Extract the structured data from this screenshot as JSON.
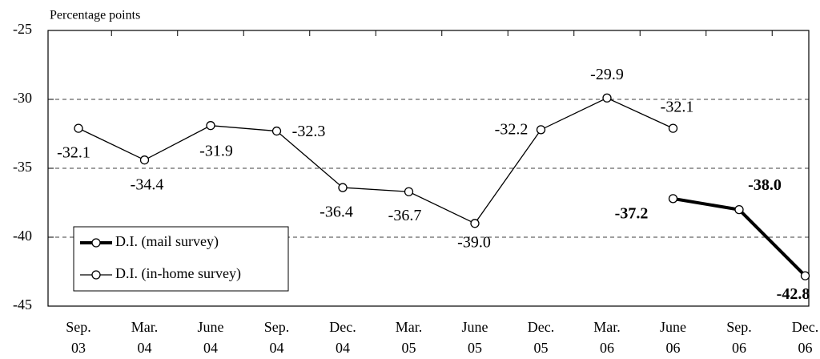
{
  "chart_data": {
    "type": "line",
    "y_label": "Percentage points",
    "categories": [
      "Sep.\n03",
      "Mar.\n04",
      "June\n04",
      "Sep.\n04",
      "Dec.\n04",
      "Mar.\n05",
      "June\n05",
      "Dec.\n05",
      "Mar.\n06",
      "June\n06",
      "Sep.\n06",
      "Dec.\n06"
    ],
    "series": [
      {
        "name": "D.I. (mail survey)",
        "color": "#000000",
        "values": [
          null,
          null,
          null,
          null,
          null,
          null,
          null,
          null,
          null,
          -37.2,
          -38.0,
          -42.8
        ],
        "value_labels": [
          null,
          null,
          null,
          null,
          null,
          null,
          null,
          null,
          null,
          "-37.2",
          "-38.0",
          "-42.8"
        ]
      },
      {
        "name": "D.I. (in-home survey)",
        "color": "#000000",
        "values": [
          -32.1,
          -34.4,
          -31.9,
          -32.3,
          -36.4,
          -36.7,
          -39.0,
          -32.2,
          -29.9,
          -32.1,
          null,
          null
        ],
        "value_labels": [
          "-32.1",
          "-34.4",
          "-31.9",
          "-32.3",
          "-36.4",
          "-36.7",
          "-39.0",
          "-32.2",
          "-29.9",
          "-32.1",
          null,
          null
        ]
      }
    ],
    "ylim": [
      -45,
      -25
    ],
    "yticks": [
      -45,
      -40,
      -35,
      -30,
      -25
    ],
    "grid": true,
    "legend": "lower left"
  }
}
